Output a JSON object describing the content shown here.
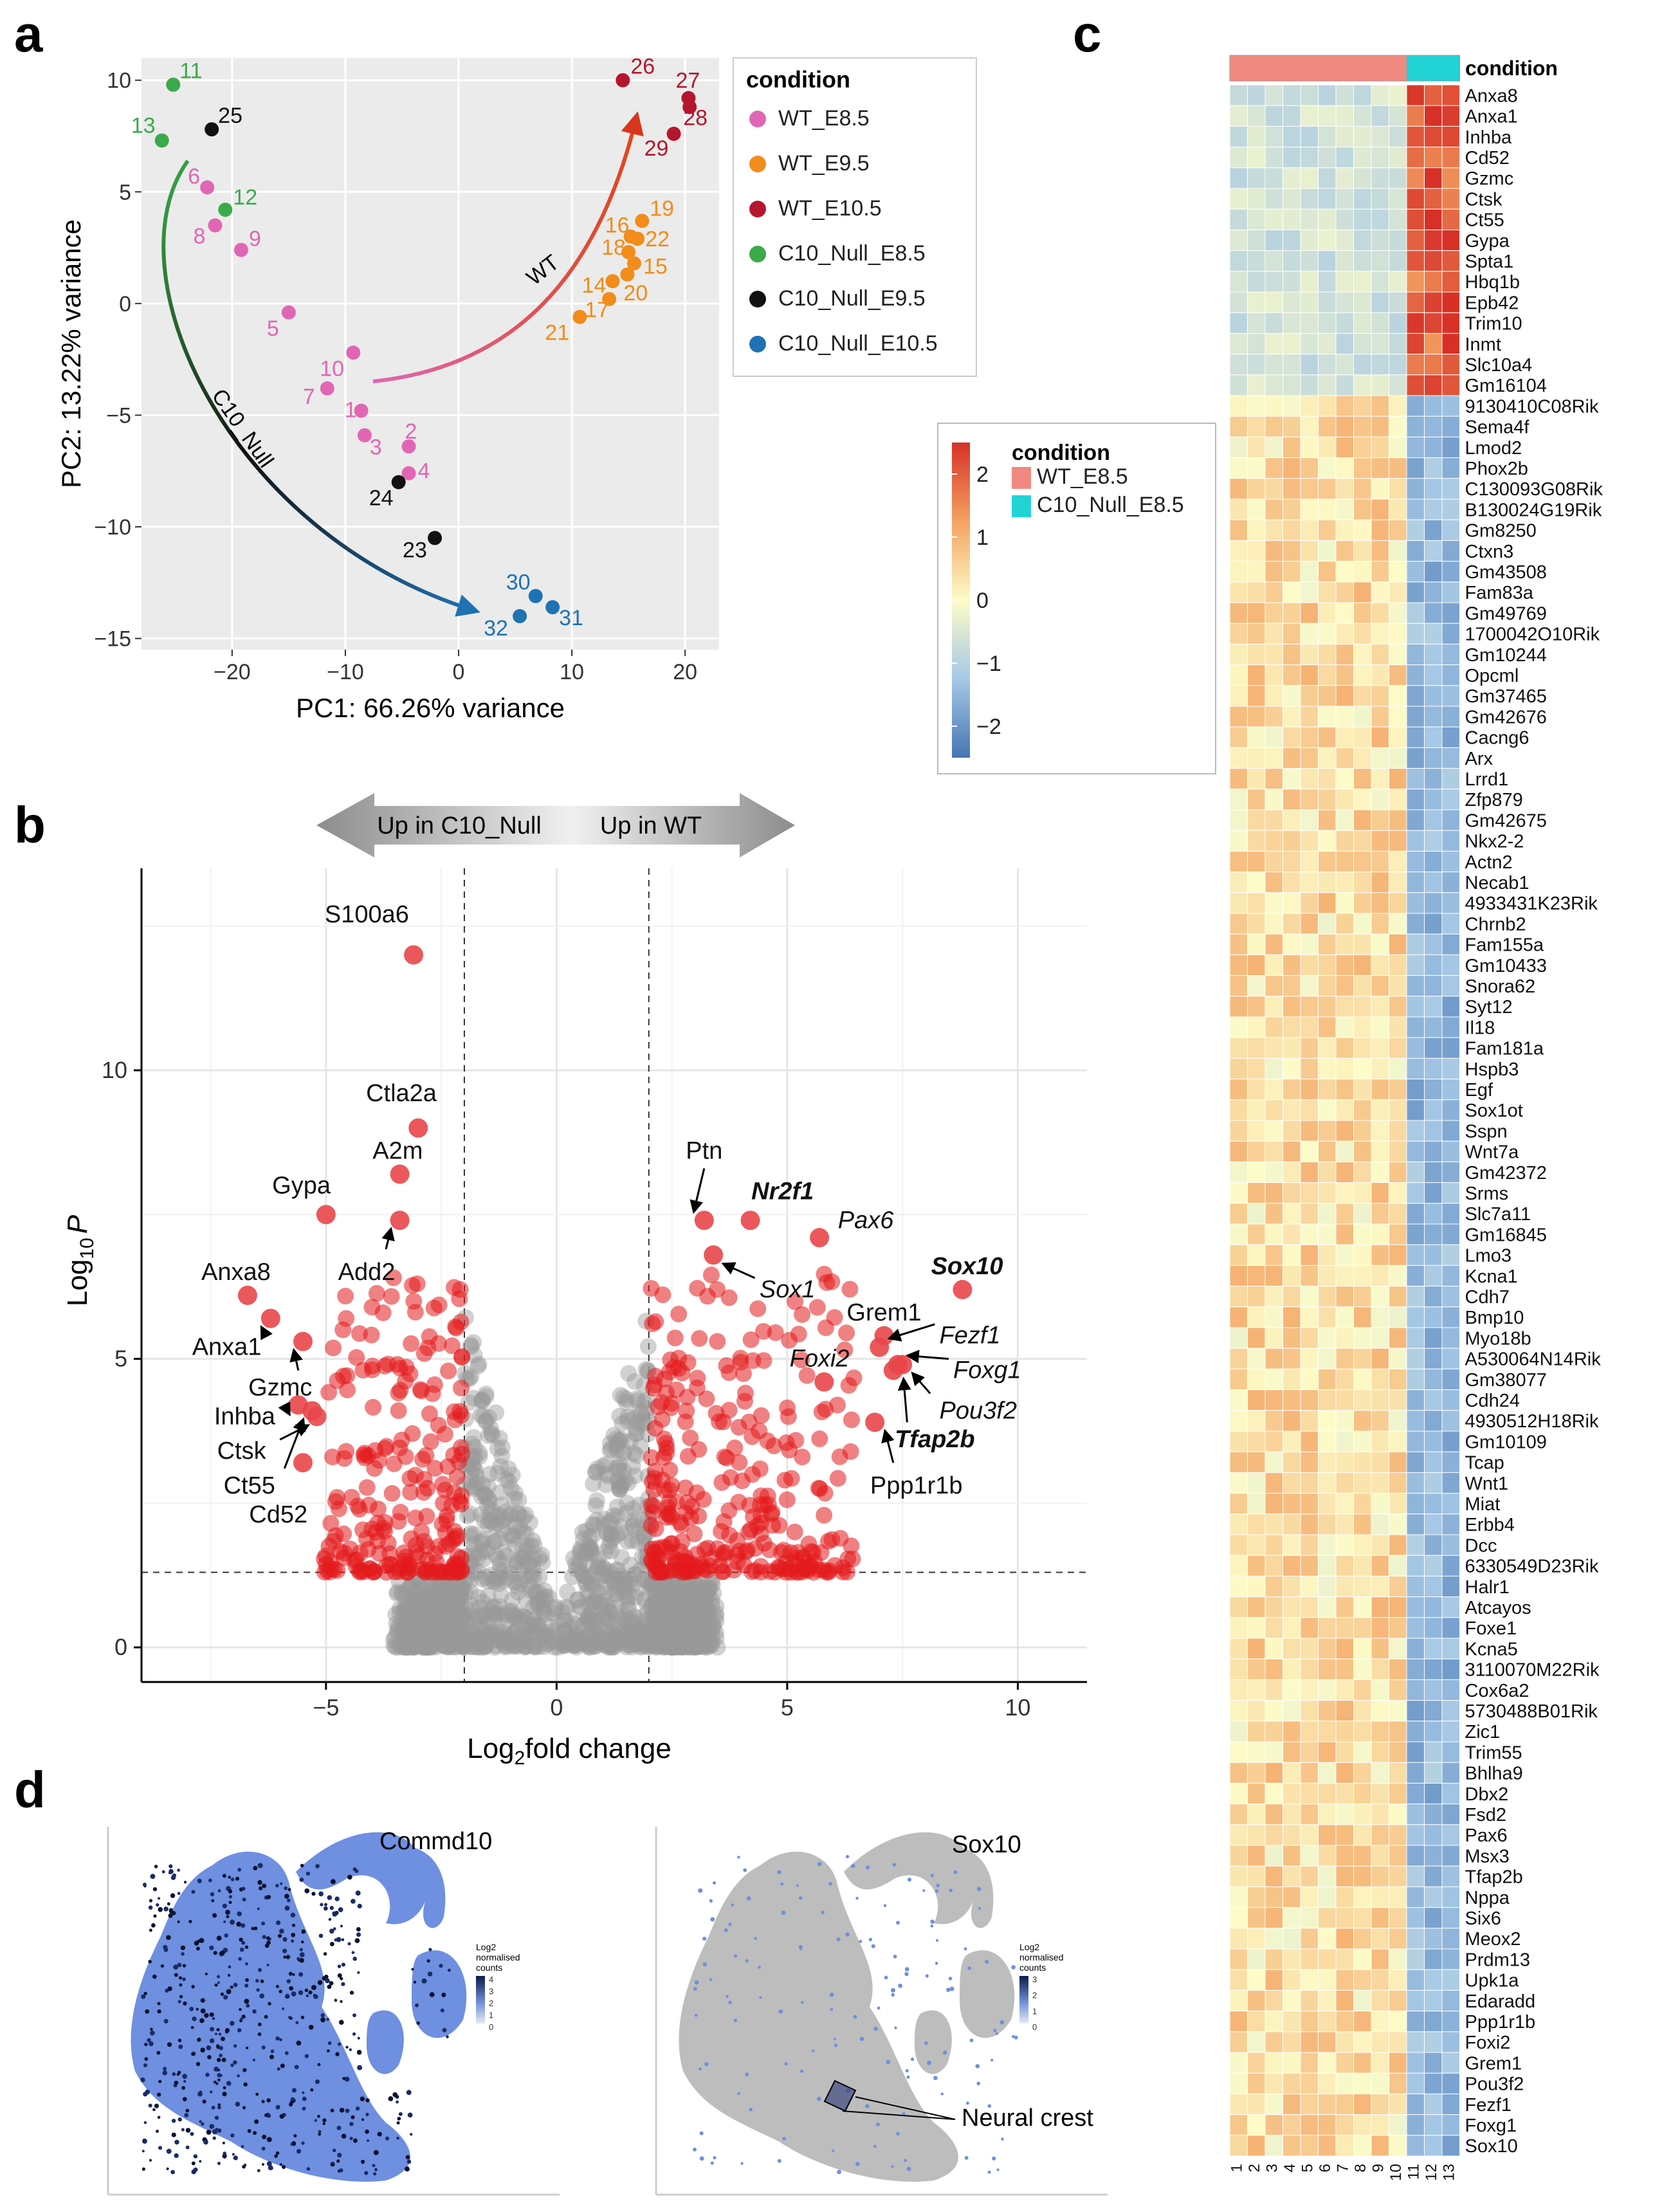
{
  "panel_labels": {
    "a": "a",
    "b": "b",
    "c": "c",
    "d": "d"
  },
  "chart_data": [
    {
      "panel": "a",
      "type": "scatter",
      "xlabel": "PC1: 66.26% variance",
      "ylabel": "PC2: 13.22% variance",
      "xlim": [
        -28,
        23
      ],
      "ylim": [
        -15.5,
        11
      ],
      "xticks": [
        -20,
        -10,
        0,
        10,
        20
      ],
      "yticks": [
        10,
        5,
        0,
        -5,
        -10,
        -15
      ],
      "grid": true,
      "legend_position": "right",
      "legend_title": "condition",
      "groups": [
        {
          "name": "WT_E8.5",
          "color": "#e066b3"
        },
        {
          "name": "WT_E9.5",
          "color": "#f28c1a"
        },
        {
          "name": "WT_E10.5",
          "color": "#b5162d"
        },
        {
          "name": "C10_Null_E8.5",
          "color": "#3aaa4a"
        },
        {
          "name": "C10_Null_E9.5",
          "color": "#111111"
        },
        {
          "name": "C10_Null_E10.5",
          "color": "#1f72b4"
        }
      ],
      "points": [
        {
          "id": "1",
          "group": "WT_E8.5",
          "x": -8.6,
          "y": -4.8
        },
        {
          "id": "2",
          "group": "WT_E8.5",
          "x": -4.4,
          "y": -6.4
        },
        {
          "id": "3",
          "group": "WT_E8.5",
          "x": -8.3,
          "y": -5.9
        },
        {
          "id": "4",
          "group": "WT_E8.5",
          "x": -4.4,
          "y": -7.6
        },
        {
          "id": "5",
          "group": "WT_E8.5",
          "x": -15.0,
          "y": -0.4
        },
        {
          "id": "6",
          "group": "WT_E8.5",
          "x": -22.2,
          "y": 5.2
        },
        {
          "id": "7",
          "group": "WT_E8.5",
          "x": -11.6,
          "y": -3.8
        },
        {
          "id": "8",
          "group": "WT_E8.5",
          "x": -21.5,
          "y": 3.5
        },
        {
          "id": "9",
          "group": "WT_E8.5",
          "x": -19.2,
          "y": 2.4
        },
        {
          "id": "10",
          "group": "WT_E8.5",
          "x": -9.3,
          "y": -2.2
        },
        {
          "id": "11",
          "group": "C10_Null_E8.5",
          "x": -25.2,
          "y": 9.8
        },
        {
          "id": "12",
          "group": "C10_Null_E8.5",
          "x": -20.6,
          "y": 4.2
        },
        {
          "id": "13",
          "group": "C10_Null_E8.5",
          "x": -26.2,
          "y": 7.3
        },
        {
          "id": "14",
          "group": "WT_E9.5",
          "x": 13.6,
          "y": 1.0
        },
        {
          "id": "15",
          "group": "WT_E9.5",
          "x": 15.5,
          "y": 1.8
        },
        {
          "id": "16",
          "group": "WT_E9.5",
          "x": 15.2,
          "y": 3.0
        },
        {
          "id": "17",
          "group": "WT_E9.5",
          "x": 13.3,
          "y": 0.2
        },
        {
          "id": "18",
          "group": "WT_E9.5",
          "x": 15.0,
          "y": 2.3
        },
        {
          "id": "19",
          "group": "WT_E9.5",
          "x": 16.2,
          "y": 3.7
        },
        {
          "id": "20",
          "group": "WT_E9.5",
          "x": 14.9,
          "y": 1.3
        },
        {
          "id": "21",
          "group": "WT_E9.5",
          "x": 10.7,
          "y": -0.6
        },
        {
          "id": "22",
          "group": "WT_E9.5",
          "x": 15.8,
          "y": 2.9
        },
        {
          "id": "23",
          "group": "C10_Null_E9.5",
          "x": -2.1,
          "y": -10.5
        },
        {
          "id": "24",
          "group": "C10_Null_E9.5",
          "x": -5.3,
          "y": -8.0
        },
        {
          "id": "25",
          "group": "C10_Null_E9.5",
          "x": -21.8,
          "y": 7.8
        },
        {
          "id": "26",
          "group": "WT_E10.5",
          "x": 14.5,
          "y": 10.0
        },
        {
          "id": "27",
          "group": "WT_E10.5",
          "x": 20.3,
          "y": 9.2
        },
        {
          "id": "28",
          "group": "WT_E10.5",
          "x": 20.4,
          "y": 8.8
        },
        {
          "id": "29",
          "group": "WT_E10.5",
          "x": 19.0,
          "y": 7.6
        },
        {
          "id": "30",
          "group": "C10_Null_E10.5",
          "x": 6.8,
          "y": -13.1
        },
        {
          "id": "31",
          "group": "C10_Null_E10.5",
          "x": 8.3,
          "y": -13.6
        },
        {
          "id": "32",
          "group": "C10_Null_E10.5",
          "x": 5.4,
          "y": -14.0
        }
      ],
      "annotations": [
        {
          "text": "WT"
        },
        {
          "text": "C10_Null"
        }
      ]
    },
    {
      "panel": "b",
      "type": "scatter",
      "subtype": "volcano",
      "xlabel_main": "Log",
      "xlabel_sub": "2",
      "xlabel_rest": "fold change",
      "ylabel_main": "Log",
      "ylabel_sub": "10",
      "ylabel_italic": "P",
      "xlim": [
        -9,
        11.5
      ],
      "ylim": [
        -0.6,
        13.5
      ],
      "xticks": [
        -5,
        0,
        5,
        10
      ],
      "yticks": [
        0,
        5,
        10
      ],
      "grid": true,
      "thresholds": {
        "fold_change": [
          -2,
          2
        ],
        "log10p": 1.3
      },
      "arrow_left": "Up in C10_Null",
      "arrow_right": "Up in WT",
      "labelled_genes": [
        {
          "gene": "S100a6",
          "x": -3.1,
          "y": 12.0,
          "style": "normal"
        },
        {
          "gene": "Ctla2a",
          "x": -3.0,
          "y": 9.0,
          "style": "normal"
        },
        {
          "gene": "A2m",
          "x": -3.4,
          "y": 8.2,
          "style": "normal"
        },
        {
          "gene": "Gypa",
          "x": -5.0,
          "y": 7.5,
          "style": "normal"
        },
        {
          "gene": "Add2",
          "x": -3.4,
          "y": 7.4,
          "style": "normal"
        },
        {
          "gene": "Anxa8",
          "x": -6.7,
          "y": 6.1,
          "style": "normal"
        },
        {
          "gene": "Anxa1",
          "x": -6.2,
          "y": 5.7,
          "style": "normal"
        },
        {
          "gene": "Gzmc",
          "x": -5.5,
          "y": 5.3,
          "style": "normal"
        },
        {
          "gene": "Inhba",
          "x": -5.6,
          "y": 4.2,
          "style": "normal"
        },
        {
          "gene": "Ctsk",
          "x": -5.2,
          "y": 4.0,
          "style": "normal"
        },
        {
          "gene": "Ct55",
          "x": -5.3,
          "y": 4.1,
          "style": "normal"
        },
        {
          "gene": "Cd52",
          "x": -5.5,
          "y": 3.2,
          "style": "normal"
        },
        {
          "gene": "Ptn",
          "x": 3.2,
          "y": 7.4,
          "style": "normal"
        },
        {
          "gene": "Nr2f1",
          "x": 4.2,
          "y": 7.4,
          "style": "bold-italic"
        },
        {
          "gene": "Pax6",
          "x": 5.7,
          "y": 7.1,
          "style": "italic"
        },
        {
          "gene": "Sox1",
          "x": 3.4,
          "y": 6.8,
          "style": "italic"
        },
        {
          "gene": "Sox10",
          "x": 8.8,
          "y": 6.2,
          "style": "bold-italic"
        },
        {
          "gene": "Grem1",
          "x": 7.1,
          "y": 5.4,
          "style": "normal"
        },
        {
          "gene": "Fezf1",
          "x": 7.0,
          "y": 5.2,
          "style": "italic"
        },
        {
          "gene": "Foxi2",
          "x": 5.8,
          "y": 4.6,
          "style": "italic"
        },
        {
          "gene": "Foxg1",
          "x": 7.4,
          "y": 4.9,
          "style": "italic"
        },
        {
          "gene": "Pou3f2",
          "x": 7.5,
          "y": 4.9,
          "style": "italic"
        },
        {
          "gene": "Tfap2b",
          "x": 7.3,
          "y": 4.8,
          "style": "bold-italic"
        },
        {
          "gene": "Ppp1r1b",
          "x": 6.9,
          "y": 3.9,
          "style": "normal"
        }
      ]
    },
    {
      "panel": "c",
      "type": "heatmap",
      "legend_title": "condition",
      "scale_ticks": [
        "2",
        "1",
        "0",
        "−1",
        "−2"
      ],
      "scale_range": [
        -2.5,
        2.5
      ],
      "condition_legend": [
        {
          "name": "WT_E8.5",
          "color": "#f08a80"
        },
        {
          "name": "C10_Null_E8.5",
          "color": "#22d3d6"
        }
      ],
      "columns": [
        "1",
        "2",
        "3",
        "4",
        "5",
        "6",
        "7",
        "8",
        "9",
        "10",
        "11",
        "12",
        "13"
      ],
      "column_condition": [
        "WT_E8.5",
        "WT_E8.5",
        "WT_E8.5",
        "WT_E8.5",
        "WT_E8.5",
        "WT_E8.5",
        "WT_E8.5",
        "WT_E8.5",
        "WT_E8.5",
        "WT_E8.5",
        "C10_Null_E8.5",
        "C10_Null_E8.5",
        "C10_Null_E8.5"
      ],
      "rows": [
        "Anxa8",
        "Anxa1",
        "Inhba",
        "Cd52",
        "Gzmc",
        "Ctsk",
        "Ct55",
        "Gypa",
        "Spta1",
        "Hbq1b",
        "Epb42",
        "Trim10",
        "Inmt",
        "Slc10a4",
        "Gm16104",
        "9130410C08Rik",
        "Sema4f",
        "Lmod2",
        "Phox2b",
        "C130093G08Rik",
        "B130024G19Rik",
        "Gm8250",
        "Ctxn3",
        "Gm43508",
        "Fam83a",
        "Gm49769",
        "1700042O10Rik",
        "Gm10244",
        "Opcml",
        "Gm37465",
        "Gm42676",
        "Cacng6",
        "Arx",
        "Lrrd1",
        "Zfp879",
        "Gm42675",
        "Nkx2-2",
        "Actn2",
        "Necab1",
        "4933431K23Rik",
        "Chrnb2",
        "Fam155a",
        "Gm10433",
        "Snora62",
        "Syt12",
        "Il18",
        "Fam181a",
        "Hspb3",
        "Egf",
        "Sox1ot",
        "Sspn",
        "Wnt7a",
        "Gm42372",
        "Srms",
        "Slc7a11",
        "Gm16845",
        "Lmo3",
        "Kcna1",
        "Cdh7",
        "Bmp10",
        "Myo18b",
        "A530064N14Rik",
        "Gm38077",
        "Cdh24",
        "4930512H18Rik",
        "Gm10109",
        "Tcap",
        "Wnt1",
        "Miat",
        "Erbb4",
        "Dcc",
        "6330549D23Rik",
        "Halr1",
        "Atcayos",
        "Foxe1",
        "Kcna5",
        "3110070M22Rik",
        "Cox6a2",
        "5730488B01Rik",
        "Zic1",
        "Trim55",
        "Bhlha9",
        "Dbx2",
        "Fsd2",
        "Pax6",
        "Msx3",
        "Tfap2b",
        "Nppa",
        "Six6",
        "Meox2",
        "Prdm13",
        "Upk1a",
        "Edaradd",
        "Ppp1r1b",
        "Foxi2",
        "Grem1",
        "Pou3f2",
        "Fezf1",
        "Foxg1",
        "Sox10"
      ]
    }
  ],
  "panel_d": {
    "umaps": [
      {
        "title": "Commd10",
        "legend_title": [
          "Log2",
          "normalised",
          "counts"
        ],
        "legend_ticks": [
          "4",
          "3",
          "2",
          "1",
          "0"
        ]
      },
      {
        "title": "Sox10",
        "legend_title": [
          "Log2",
          "normalised",
          "counts"
        ],
        "legend_ticks": [
          "3",
          "2",
          "1",
          "0"
        ],
        "annotation": "Neural crest"
      }
    ]
  }
}
